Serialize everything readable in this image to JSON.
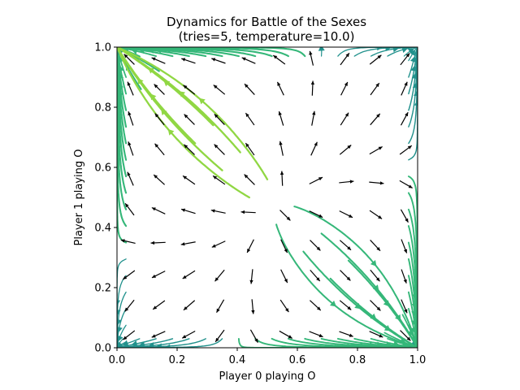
{
  "chart_data": {
    "type": "streamplot",
    "title_line1": "Dynamics for Battle of the Sexes",
    "title_line2": "(tries=5, temperature=10.0)",
    "xlabel": "Player 0 playing O",
    "ylabel": "Player 1 playing O",
    "xlim": [
      0.0,
      1.0
    ],
    "ylim": [
      0.0,
      1.0
    ],
    "xticks": [
      "0.0",
      "0.2",
      "0.4",
      "0.6",
      "0.8",
      "1.0"
    ],
    "yticks": [
      "0.0",
      "0.2",
      "0.4",
      "0.6",
      "0.8",
      "1.0"
    ],
    "fixed_point": [
      0.53,
      0.47
    ],
    "grid": false,
    "colormap": [
      "#21918c",
      "#35b779",
      "#90d743",
      "#fde725"
    ],
    "arrow_color": "#000000"
  }
}
